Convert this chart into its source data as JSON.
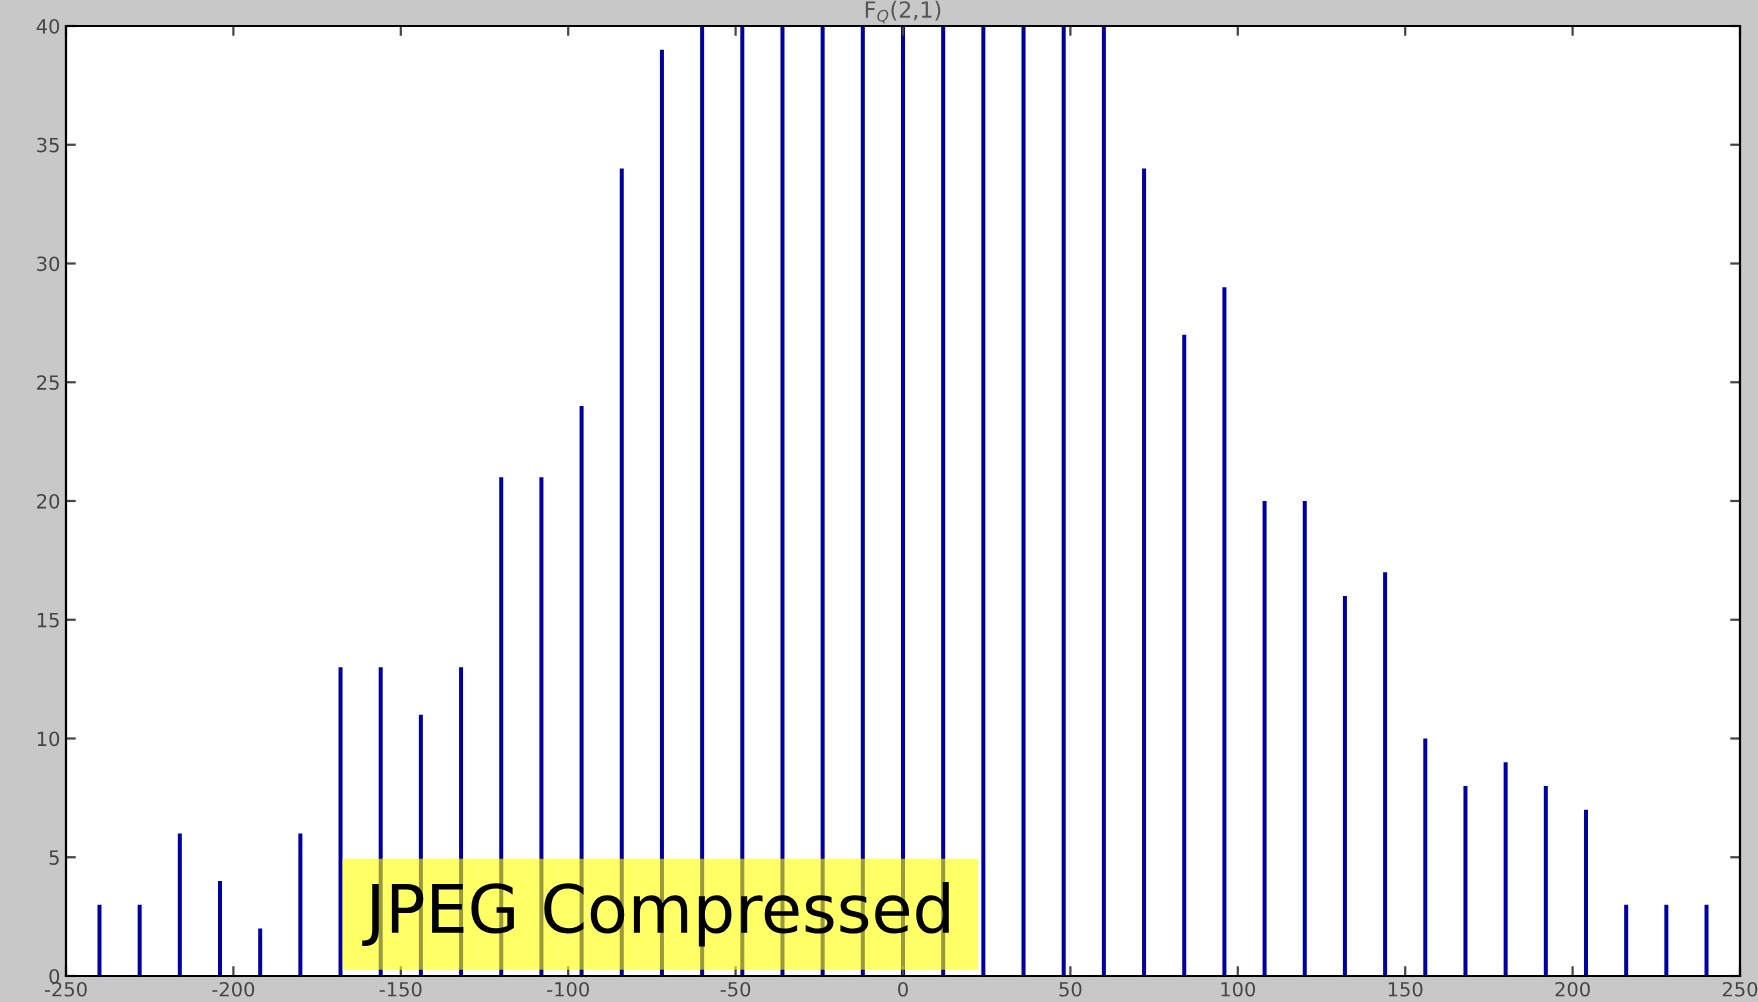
{
  "chart_data": {
    "type": "bar",
    "title": "F$_{Q}$(2,1)",
    "x": [
      -240,
      -228,
      -216,
      -204,
      -192,
      -180,
      -168,
      -156,
      -144,
      -132,
      -120,
      -108,
      -96,
      -84,
      -72,
      -60,
      -48,
      -36,
      -24,
      -12,
      0,
      12,
      24,
      36,
      48,
      60,
      72,
      84,
      96,
      108,
      120,
      132,
      144,
      156,
      168,
      180,
      192,
      204,
      216,
      228,
      240
    ],
    "values": [
      3,
      3,
      6,
      4,
      2,
      6,
      13,
      13,
      11,
      13,
      21,
      21,
      24,
      34,
      39,
      40,
      40,
      40,
      40,
      40,
      40,
      40,
      40,
      40,
      40,
      40,
      34,
      27,
      29,
      20,
      20,
      16,
      17,
      10,
      8,
      9,
      8,
      7,
      3,
      3,
      3
    ],
    "color": "#0000a0",
    "xlim": [
      -250,
      250
    ],
    "xticks": [
      -250,
      -200,
      -150,
      -100,
      -50,
      0,
      50,
      100,
      150,
      200,
      250
    ],
    "ylim": [
      0,
      40
    ],
    "yticks": [
      0,
      5,
      10,
      15,
      20,
      25,
      30,
      35,
      40
    ],
    "grid": false,
    "annotations": [
      "JPEG Compressed"
    ]
  }
}
